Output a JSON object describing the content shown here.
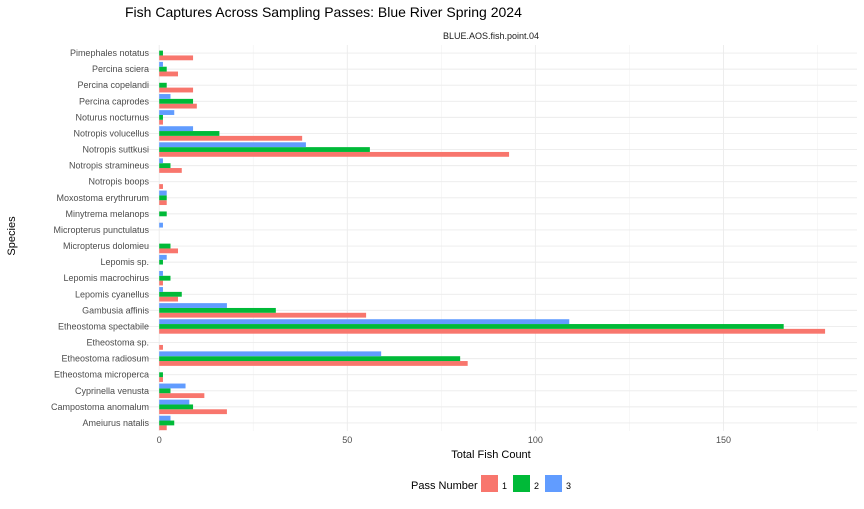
{
  "chart_data": {
    "type": "bar",
    "orientation": "horizontal",
    "title": "Fish Captures Across Sampling Passes: Blue River Spring 2024",
    "facet_label": "BLUE.AOS.fish.point.04",
    "xlabel": "Total Fish Count",
    "ylabel": "Species",
    "xlim": [
      -7,
      180
    ],
    "x_ticks": [
      0,
      50,
      100,
      150
    ],
    "grid": true,
    "legend": {
      "title": "Pass Number",
      "position": "bottom"
    },
    "categories": [
      "Pimephales notatus",
      "Percina sciera",
      "Percina copelandi",
      "Percina caprodes",
      "Noturus nocturnus",
      "Notropis volucellus",
      "Notropis suttkusi",
      "Notropis stramineus",
      "Notropis boops",
      "Moxostoma erythrurum",
      "Minytrema melanops",
      "Micropterus punctulatus",
      "Micropterus dolomieu",
      "Lepomis sp.",
      "Lepomis macrochirus",
      "Lepomis cyanellus",
      "Gambusia affinis",
      "Etheostoma spectabile",
      "Etheostoma sp.",
      "Etheostoma radiosum",
      "Etheostoma microperca",
      "Cyprinella venusta",
      "Campostoma anomalum",
      "Ameiurus natalis"
    ],
    "series": [
      {
        "name": "1",
        "color": "#F8766D",
        "values": [
          9,
          5,
          9,
          10,
          1,
          38,
          93,
          6,
          1,
          2,
          0,
          0,
          5,
          0,
          1,
          5,
          55,
          177,
          1,
          82,
          1,
          12,
          18,
          2
        ]
      },
      {
        "name": "2",
        "color": "#00BA38",
        "values": [
          1,
          2,
          2,
          9,
          1,
          16,
          56,
          3,
          0,
          2,
          2,
          0,
          3,
          1,
          3,
          6,
          31,
          166,
          0,
          80,
          1,
          3,
          9,
          4
        ]
      },
      {
        "name": "3",
        "color": "#619CFF",
        "values": [
          0,
          1,
          0,
          3,
          4,
          9,
          39,
          1,
          0,
          2,
          0,
          1,
          0,
          2,
          1,
          1,
          18,
          109,
          0,
          59,
          0,
          7,
          8,
          3
        ]
      }
    ]
  }
}
